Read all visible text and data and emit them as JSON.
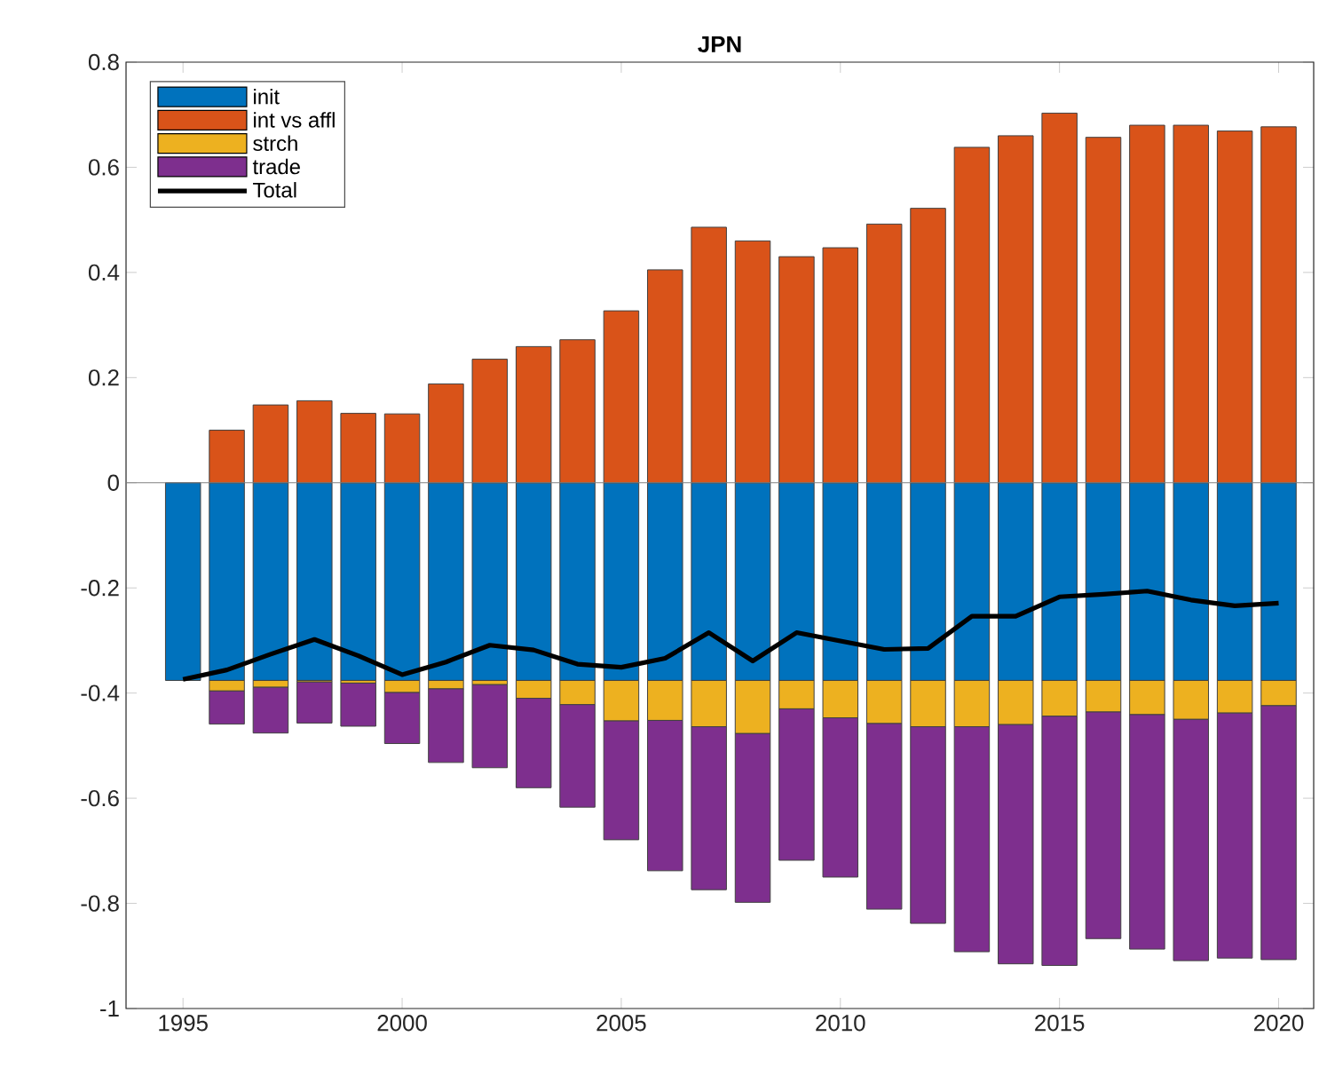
{
  "chart_data": {
    "type": "bar",
    "title": "JPN",
    "stacked": true,
    "x": [
      1995,
      1996,
      1997,
      1998,
      1999,
      2000,
      2001,
      2002,
      2003,
      2004,
      2005,
      2006,
      2007,
      2008,
      2009,
      2010,
      2011,
      2012,
      2013,
      2014,
      2015,
      2016,
      2017,
      2018,
      2019,
      2020
    ],
    "series": [
      {
        "name": "init",
        "color": "#0072bd",
        "values": [
          -0.376,
          -0.376,
          -0.376,
          -0.376,
          -0.376,
          -0.376,
          -0.376,
          -0.376,
          -0.376,
          -0.376,
          -0.376,
          -0.376,
          -0.376,
          -0.376,
          -0.376,
          -0.376,
          -0.376,
          -0.376,
          -0.376,
          -0.376,
          -0.376,
          -0.376,
          -0.376,
          -0.376,
          -0.376,
          -0.376
        ]
      },
      {
        "name": "int vs affl",
        "color": "#d95319",
        "values": [
          0,
          0.1,
          0.148,
          0.156,
          0.132,
          0.131,
          0.188,
          0.235,
          0.259,
          0.272,
          0.327,
          0.405,
          0.486,
          0.46,
          0.43,
          0.447,
          0.492,
          0.522,
          0.638,
          0.66,
          0.703,
          0.657,
          0.68,
          0.68,
          0.669,
          0.677
        ]
      },
      {
        "name": "strch",
        "color": "#edb120",
        "values": [
          0,
          -0.02,
          -0.013,
          -0.003,
          -0.005,
          -0.023,
          -0.016,
          -0.008,
          -0.034,
          -0.046,
          -0.077,
          -0.076,
          -0.088,
          -0.101,
          -0.054,
          -0.071,
          -0.082,
          -0.088,
          -0.088,
          -0.084,
          -0.068,
          -0.06,
          -0.065,
          -0.074,
          -0.062,
          -0.048
        ]
      },
      {
        "name": "trade",
        "color": "#7e2f8e",
        "values": [
          0,
          -0.063,
          -0.087,
          -0.078,
          -0.082,
          -0.097,
          -0.14,
          -0.158,
          -0.17,
          -0.195,
          -0.226,
          -0.286,
          -0.31,
          -0.321,
          -0.288,
          -0.303,
          -0.353,
          -0.374,
          -0.428,
          -0.455,
          -0.474,
          -0.431,
          -0.446,
          -0.459,
          -0.466,
          -0.483
        ]
      },
      {
        "name": "Total",
        "type": "line",
        "color": "#000000",
        "values": [
          -0.374,
          -0.356,
          -0.326,
          -0.298,
          -0.329,
          -0.365,
          -0.341,
          -0.309,
          -0.318,
          -0.345,
          -0.351,
          -0.334,
          -0.285,
          -0.339,
          -0.285,
          -0.301,
          -0.317,
          -0.315,
          -0.254,
          -0.254,
          -0.217,
          -0.212,
          -0.206,
          -0.223,
          -0.234,
          -0.229
        ]
      }
    ],
    "xlim": [
      1993.7,
      2020.8
    ],
    "ylim": [
      -1,
      0.8
    ],
    "xticks": [
      1995,
      2000,
      2005,
      2010,
      2015,
      2020
    ],
    "yticks": [
      -1,
      -0.8,
      -0.6,
      -0.4,
      -0.2,
      0,
      0.2,
      0.4,
      0.6,
      0.8
    ],
    "ref_lines": [
      {
        "axis": "y",
        "value": 0,
        "color": "#808080"
      }
    ],
    "legend": "top left",
    "grid": false,
    "marker": "none",
    "line_style": "solid"
  }
}
